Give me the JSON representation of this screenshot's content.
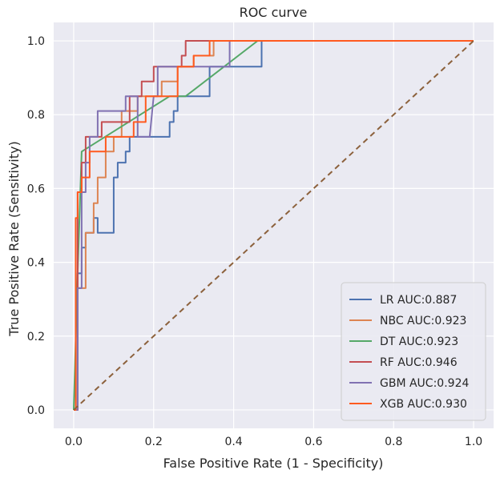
{
  "chart_data": {
    "type": "line",
    "title": "ROC curve",
    "xlabel": "False Positive Rate (1 - Specificity)",
    "ylabel": "True Positive Rate (Sensitivity)",
    "xlim": [
      -0.05,
      1.05
    ],
    "ylim": [
      -0.05,
      1.05
    ],
    "grid": true,
    "background": "#eaeaf2",
    "legend_position": "bottom-right",
    "xticks": [
      0.0,
      0.2,
      0.4,
      0.6,
      0.8,
      1.0
    ],
    "yticks": [
      0.0,
      0.2,
      0.4,
      0.6,
      0.8,
      1.0
    ],
    "xtick_labels": [
      "0.0",
      "0.2",
      "0.4",
      "0.6",
      "0.8",
      "1.0"
    ],
    "ytick_labels": [
      "0.0",
      "0.2",
      "0.4",
      "0.6",
      "0.8",
      "1.0"
    ],
    "diagonal": {
      "x": [
        0,
        1
      ],
      "y": [
        0,
        1
      ],
      "color": "#8c613c",
      "style": "dashed"
    },
    "series": [
      {
        "name": "LR AUC:0.887",
        "color": "#4c72b0",
        "x": [
          0,
          0.01,
          0.01,
          0.02,
          0.02,
          0.03,
          0.03,
          0.05,
          0.05,
          0.06,
          0.06,
          0.08,
          0.08,
          0.1,
          0.1,
          0.11,
          0.11,
          0.13,
          0.13,
          0.14,
          0.14,
          0.16,
          0.16,
          0.18,
          0.18,
          0.24,
          0.24,
          0.25,
          0.25,
          0.26,
          0.26,
          0.34,
          0.34,
          0.41,
          0.41,
          0.47,
          0.47,
          1.0
        ],
        "y": [
          0,
          0,
          0.37,
          0.37,
          0.44,
          0.44,
          0.48,
          0.48,
          0.52,
          0.52,
          0.48,
          0.48,
          0.48,
          0.48,
          0.63,
          0.63,
          0.67,
          0.67,
          0.7,
          0.7,
          0.74,
          0.74,
          0.74,
          0.74,
          0.74,
          0.74,
          0.78,
          0.78,
          0.81,
          0.81,
          0.85,
          0.85,
          0.93,
          0.93,
          0.93,
          0.93,
          1.0,
          1.0
        ]
      },
      {
        "name": "NBC AUC:0.923",
        "color": "#dd8452",
        "x": [
          0,
          0.01,
          0.01,
          0.03,
          0.03,
          0.05,
          0.05,
          0.06,
          0.06,
          0.08,
          0.08,
          0.1,
          0.1,
          0.12,
          0.12,
          0.16,
          0.16,
          0.22,
          0.22,
          0.26,
          0.26,
          0.3,
          0.3,
          0.32,
          0.32,
          0.35,
          0.35,
          0.4,
          0.4,
          1.0
        ],
        "y": [
          0,
          0,
          0.33,
          0.33,
          0.48,
          0.48,
          0.56,
          0.56,
          0.63,
          0.63,
          0.7,
          0.7,
          0.74,
          0.74,
          0.81,
          0.81,
          0.85,
          0.85,
          0.89,
          0.89,
          0.93,
          0.93,
          0.96,
          0.96,
          0.96,
          0.96,
          1.0,
          1.0,
          1.0,
          1.0
        ]
      },
      {
        "name": "DT AUC:0.923",
        "color": "#55a868",
        "x": [
          0,
          0.01,
          0.02,
          0.24,
          0.28,
          0.46,
          1.0
        ],
        "y": [
          0,
          0.37,
          0.7,
          0.85,
          0.85,
          1.0,
          1.0
        ]
      },
      {
        "name": "RF AUC:0.946",
        "color": "#c44e52",
        "x": [
          0,
          0.01,
          0.01,
          0.02,
          0.02,
          0.03,
          0.03,
          0.05,
          0.05,
          0.07,
          0.07,
          0.14,
          0.14,
          0.17,
          0.17,
          0.2,
          0.2,
          0.27,
          0.27,
          0.28,
          0.28,
          1.0
        ],
        "y": [
          0,
          0,
          0.59,
          0.59,
          0.67,
          0.67,
          0.74,
          0.74,
          0.74,
          0.74,
          0.78,
          0.78,
          0.85,
          0.85,
          0.89,
          0.89,
          0.93,
          0.93,
          0.96,
          0.96,
          1.0,
          1.0
        ]
      },
      {
        "name": "GBM AUC:0.924",
        "color": "#8172b2",
        "x": [
          0,
          0.01,
          0.01,
          0.02,
          0.02,
          0.03,
          0.03,
          0.04,
          0.04,
          0.06,
          0.06,
          0.13,
          0.13,
          0.16,
          0.16,
          0.19,
          0.2,
          0.21,
          0.21,
          0.39,
          0.39,
          1.0
        ],
        "y": [
          0,
          0,
          0.33,
          0.33,
          0.59,
          0.59,
          0.67,
          0.67,
          0.74,
          0.74,
          0.81,
          0.81,
          0.85,
          0.85,
          0.74,
          0.74,
          0.85,
          0.85,
          0.93,
          0.93,
          1.0,
          1.0
        ]
      },
      {
        "name": "XGB AUC:0.930",
        "color": "#ff5a1f",
        "x": [
          0,
          0.005,
          0.005,
          0.01,
          0.01,
          0.02,
          0.02,
          0.04,
          0.04,
          0.08,
          0.08,
          0.15,
          0.15,
          0.18,
          0.18,
          0.26,
          0.26,
          0.3,
          0.3,
          0.34,
          0.34,
          1.0
        ],
        "y": [
          0,
          0,
          0.52,
          0.52,
          0.59,
          0.59,
          0.63,
          0.63,
          0.7,
          0.7,
          0.74,
          0.74,
          0.78,
          0.78,
          0.85,
          0.85,
          0.93,
          0.93,
          0.96,
          0.96,
          1.0,
          1.0
        ]
      }
    ]
  }
}
